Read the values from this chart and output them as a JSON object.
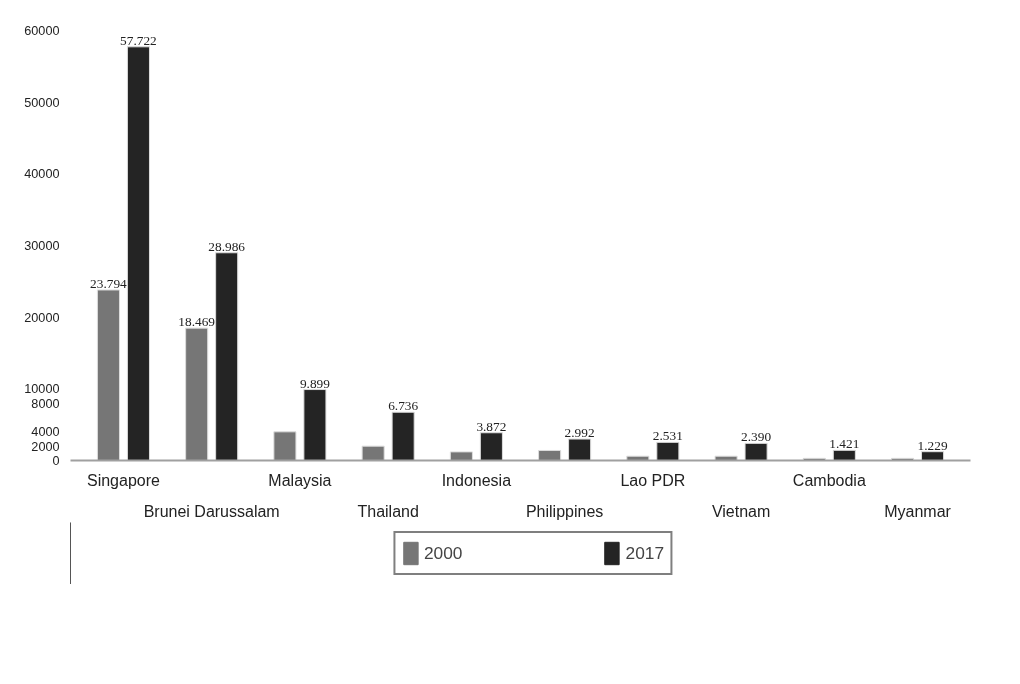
{
  "chart_data": {
    "type": "bar",
    "categories": [
      "Singapore",
      "Brunei Darussalam",
      "Malaysia",
      "Thailand",
      "Indonesia",
      "Philippines",
      "Lao PDR",
      "Vietnam",
      "Cambodia",
      "Myanmar"
    ],
    "series": [
      {
        "name": "2000",
        "color": "#767676",
        "values": [
          23794,
          18469,
          4000,
          2000,
          1200,
          1400,
          600,
          600,
          300,
          300
        ],
        "value_labels": [
          "23.794",
          "18.469",
          null,
          null,
          null,
          null,
          null,
          null,
          null,
          null
        ]
      },
      {
        "name": "2017",
        "color": "#242424",
        "values": [
          57722,
          28986,
          9899,
          6736,
          3872,
          2992,
          2531,
          2390,
          1421,
          1229
        ],
        "value_labels": [
          "57.722",
          "28.986",
          "9.899",
          "6.736",
          "3.872",
          "2.992",
          "2.531",
          "2.390",
          "1.421",
          "1.229"
        ]
      }
    ],
    "ylim": [
      0,
      60000
    ],
    "yticks": [
      0,
      2000,
      4000,
      8000,
      10000,
      20000,
      30000,
      40000,
      50000,
      60000
    ],
    "grid": false,
    "legend": "bottom"
  }
}
